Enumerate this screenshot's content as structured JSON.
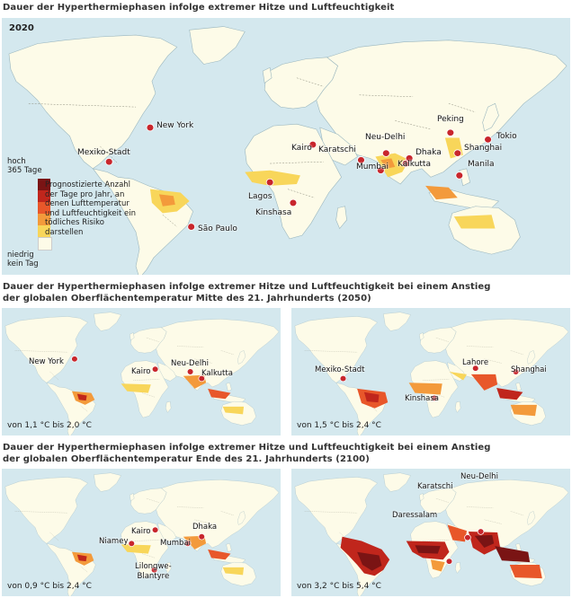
{
  "headings": {
    "main": "Dauer der Hyperthermiephasen infolge extremer Hitze und Luftfeuchtigkeit",
    "mid": "Dauer der Hyperthermiephasen infolge extremer Hitze und Luftfeuchtigkeit bei einem Anstieg\nder globalen Oberflächentemperatur Mitte des 21. Jahrhunderts (2050)",
    "end": "Dauer der Hyperthermiephasen infolge extremer Hitze und Luftfeuchtigkeit bei einem Anstieg\nder globalen Oberflächentemperatur Ende des 21. Jahrhunderts (2100)"
  },
  "main_map": {
    "year": "2020",
    "cities": [
      "New York",
      "Mexiko-Stadt",
      "São Paulo",
      "Lagos",
      "Kinshasa",
      "Kairo",
      "Karatschi",
      "Neu-Delhi",
      "Mumbai",
      "Dhaka",
      "Kalkutta",
      "Peking",
      "Shanghai",
      "Tokio",
      "Manila"
    ]
  },
  "legend": {
    "high": "hoch\n365 Tage",
    "description": "Prognostizierte Anzahl der Tage pro Jahr, an denen Lufttemperatur und Luftfeuchtigkeit ein tödliches Risiko darstellen",
    "low": "niedrig\nkein Tag",
    "colors": [
      "#7a1414",
      "#c0261c",
      "#e8572a",
      "#f39a3b",
      "#f8d65a",
      "#fdfbe8"
    ]
  },
  "panels_2050": [
    {
      "range": "von 1,1 °C bis 2,0 °C",
      "cities": [
        "New York",
        "Kairo",
        "Neu-Delhi",
        "Kalkutta"
      ]
    },
    {
      "range": "von 1,5 °C bis 2,4 °C",
      "cities": [
        "Mexiko-Stadt",
        "Lahore",
        "Shanghai",
        "Kinshasa"
      ]
    }
  ],
  "panels_2100": [
    {
      "range": "von 0,9 °C bis 2,4 °C",
      "cities": [
        "Kairo",
        "Dhaka",
        "Niamey",
        "Mumbai",
        "Lilongwe-\nBlantyre"
      ]
    },
    {
      "range": "von 3,2 °C bis 5,4 °C",
      "cities": [
        "Neu-Delhi",
        "Karatschi",
        "Daressalam"
      ]
    }
  ]
}
